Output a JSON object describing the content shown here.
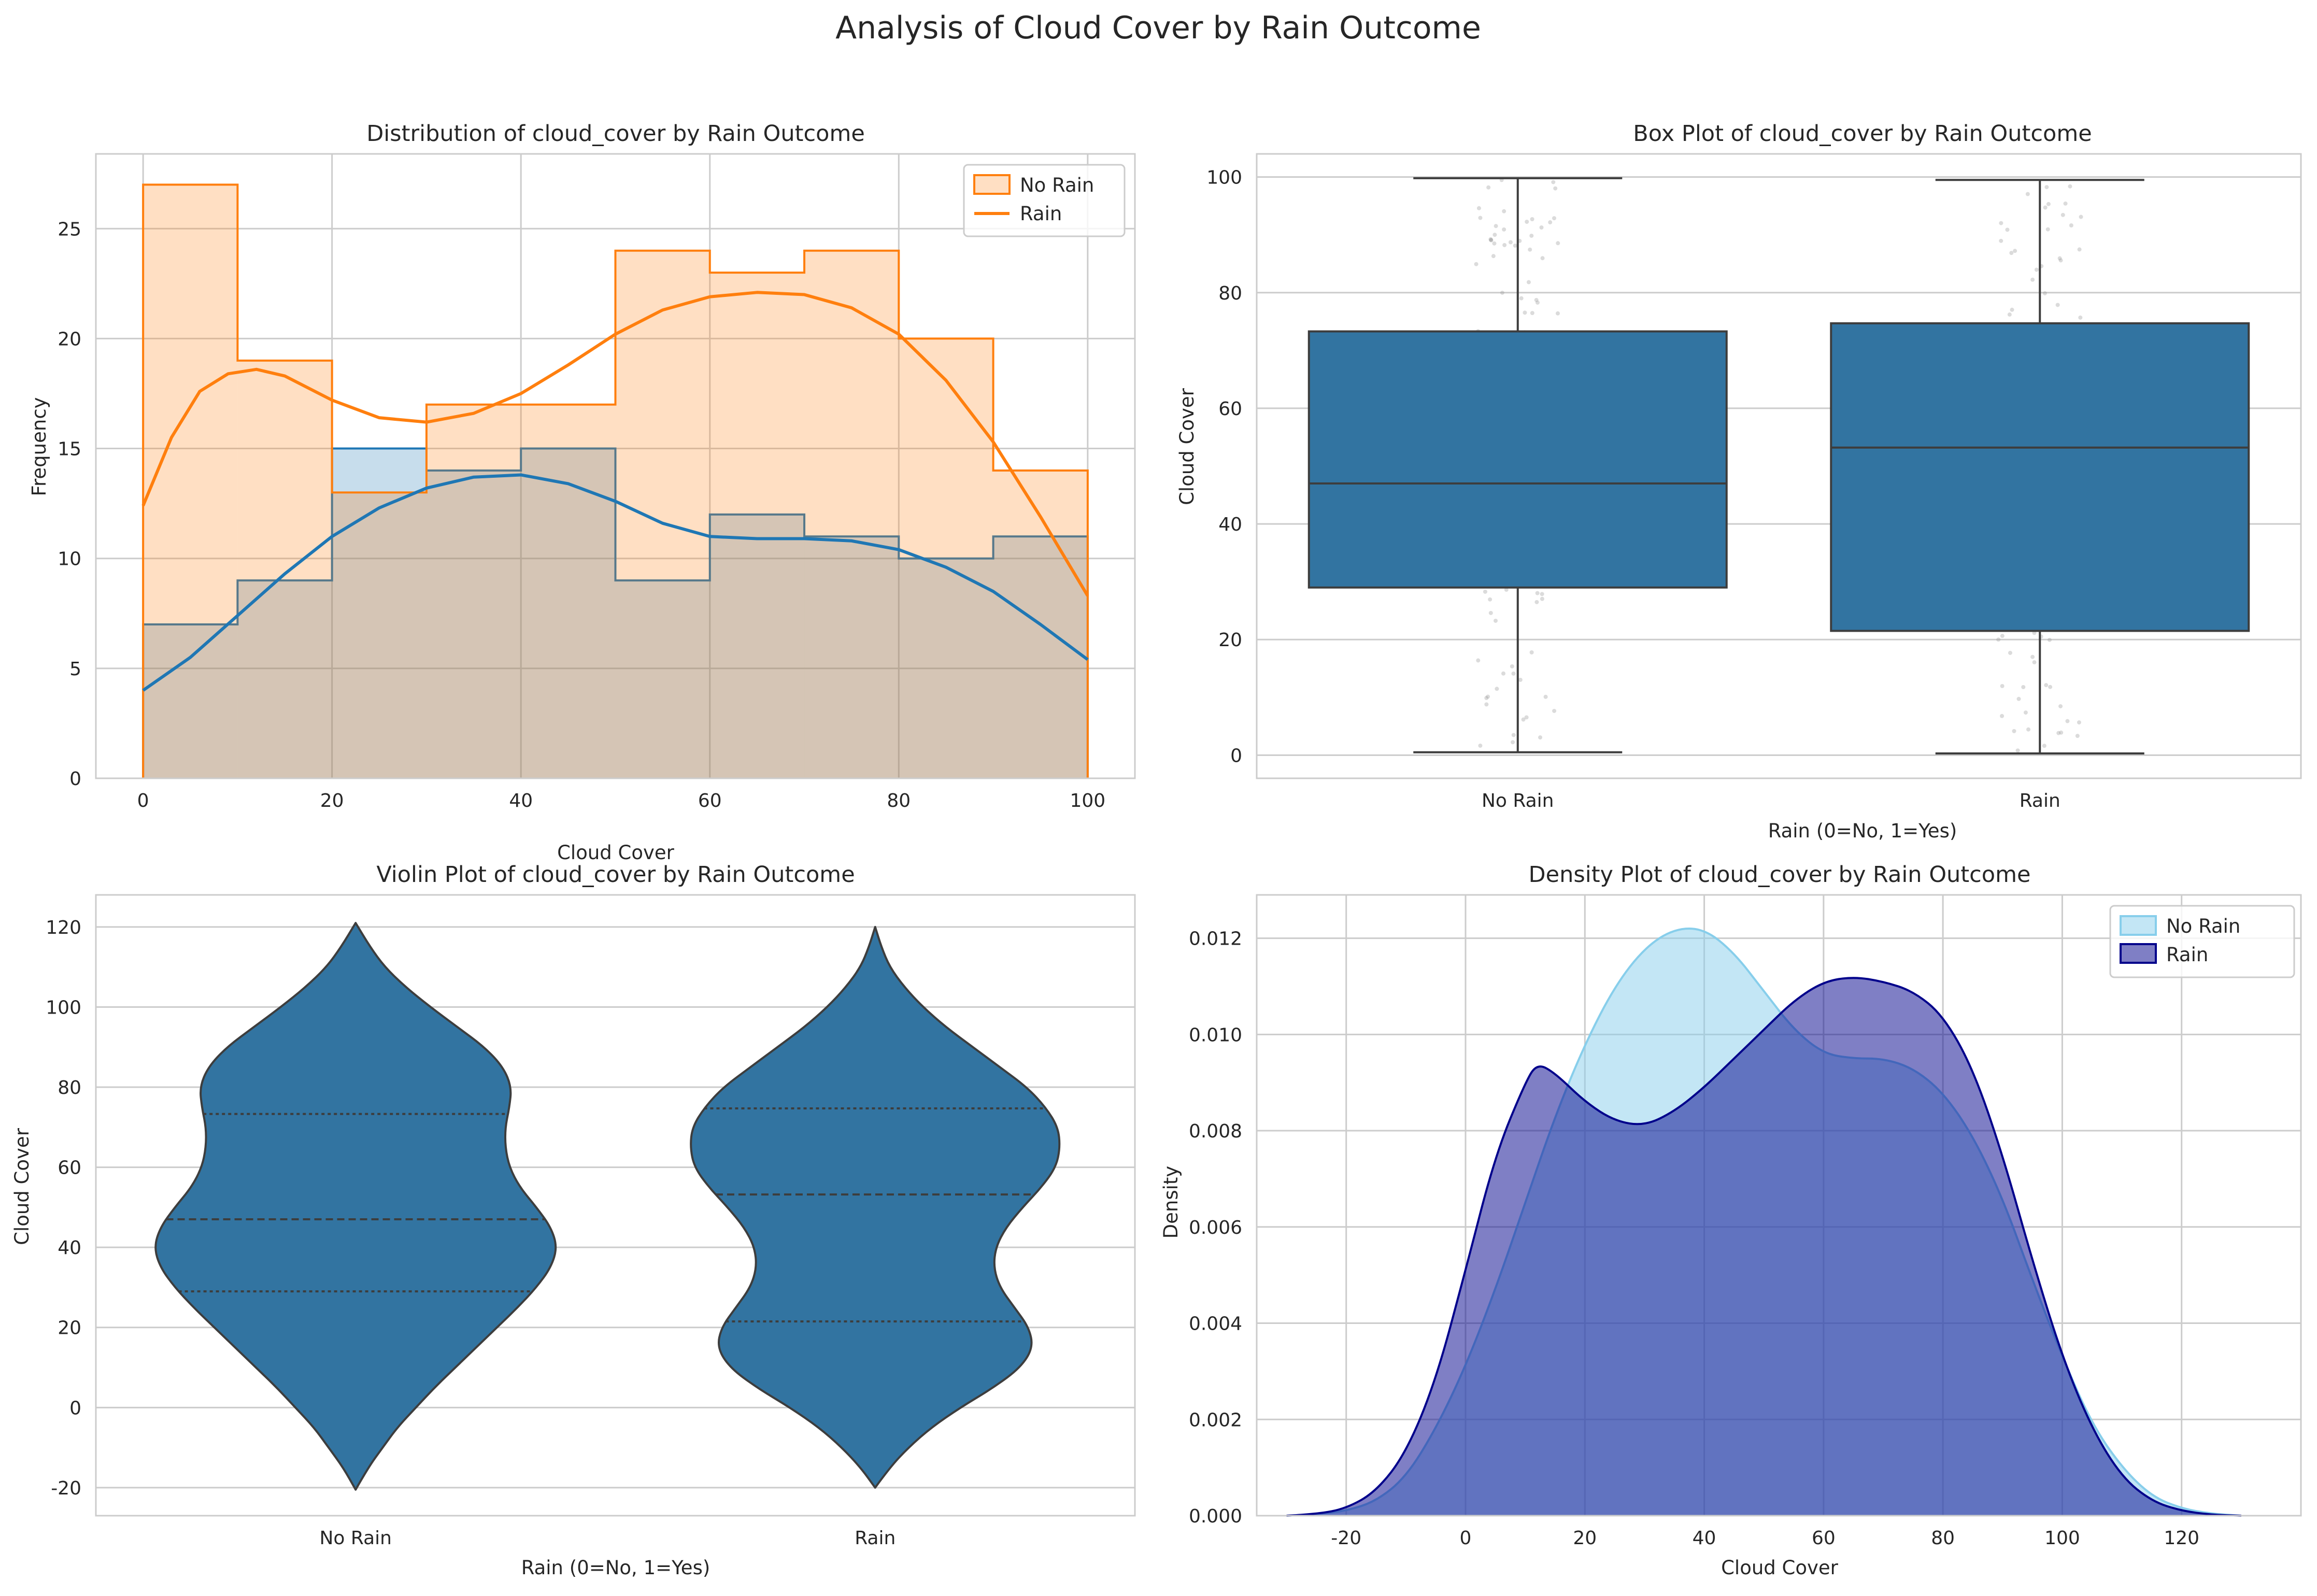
{
  "figure": {
    "title": "Analysis of Cloud Cover by Rain Outcome"
  },
  "colors": {
    "hist_no_rain": "#1f77b4",
    "hist_rain": "#ff7f0e",
    "box_fill": "#3274a1",
    "box_edge": "#3d3d3d",
    "density_no_rain": "#87ceeb",
    "density_rain": "#00008b",
    "grid": "#cccccc"
  },
  "chart_data": [
    {
      "type": "histogram",
      "title": "Distribution of cloud_cover by Rain Outcome",
      "xlabel": "Cloud Cover",
      "ylabel": "Frequency",
      "xlim": [
        -5,
        105
      ],
      "ylim": [
        0,
        28.4
      ],
      "xticks": [
        0,
        20,
        40,
        60,
        80,
        100
      ],
      "yticks": [
        0,
        5,
        10,
        15,
        20,
        25
      ],
      "grid": true,
      "legend": {
        "position": "top-right",
        "entries": [
          "No Rain",
          "Rain"
        ]
      },
      "bin_edges": [
        0,
        10,
        20,
        30,
        40,
        50,
        60,
        70,
        80,
        90,
        100
      ],
      "series": [
        {
          "key": "no_rain",
          "counts": [
            7,
            9,
            15,
            14,
            15,
            9,
            12,
            11,
            10,
            11
          ],
          "kde": [
            [
              0,
              4
            ],
            [
              5,
              5.5
            ],
            [
              10,
              7.4
            ],
            [
              15,
              9.3
            ],
            [
              20,
              11
            ],
            [
              25,
              12.3
            ],
            [
              30,
              13.2
            ],
            [
              35,
              13.7
            ],
            [
              40,
              13.8
            ],
            [
              45,
              13.4
            ],
            [
              50,
              12.6
            ],
            [
              55,
              11.6
            ],
            [
              60,
              11
            ],
            [
              65,
              10.9
            ],
            [
              70,
              10.9
            ],
            [
              75,
              10.8
            ],
            [
              80,
              10.4
            ],
            [
              85,
              9.6
            ],
            [
              90,
              8.5
            ],
            [
              95,
              7
            ],
            [
              100,
              5.4
            ]
          ]
        },
        {
          "key": "rain",
          "counts": [
            27,
            19,
            13,
            17,
            17,
            24,
            23,
            24,
            20,
            14
          ],
          "kde": [
            [
              0,
              12.4
            ],
            [
              3,
              15.5
            ],
            [
              6,
              17.6
            ],
            [
              9,
              18.4
            ],
            [
              12,
              18.6
            ],
            [
              15,
              18.3
            ],
            [
              20,
              17.2
            ],
            [
              25,
              16.4
            ],
            [
              30,
              16.2
            ],
            [
              35,
              16.6
            ],
            [
              40,
              17.5
            ],
            [
              45,
              18.8
            ],
            [
              50,
              20.2
            ],
            [
              55,
              21.3
            ],
            [
              60,
              21.9
            ],
            [
              65,
              22.1
            ],
            [
              70,
              22
            ],
            [
              75,
              21.4
            ],
            [
              80,
              20.2
            ],
            [
              85,
              18.1
            ],
            [
              90,
              15.3
            ],
            [
              95,
              11.9
            ],
            [
              100,
              8.3
            ]
          ]
        }
      ]
    },
    {
      "type": "box",
      "title": "Box Plot of cloud_cover by Rain Outcome",
      "xlabel": "Rain (0=No, 1=Yes)",
      "ylabel": "Cloud Cover",
      "categories": [
        "No Rain",
        "Rain"
      ],
      "ylim": [
        -4,
        104
      ],
      "yticks": [
        0,
        20,
        40,
        60,
        80,
        100
      ],
      "grid": true,
      "boxes": [
        {
          "whislo": 0.5,
          "q1": 29,
          "med": 47,
          "q3": 73.3,
          "whishi": 99.8
        },
        {
          "whislo": 0.3,
          "q1": 21.5,
          "med": 53.2,
          "q3": 74.7,
          "whishi": 99.5
        }
      ]
    },
    {
      "type": "violin",
      "title": "Violin Plot of cloud_cover by Rain Outcome",
      "xlabel": "Rain (0=No, 1=Yes)",
      "ylabel": "Cloud Cover",
      "categories": [
        "No Rain",
        "Rain"
      ],
      "ylim": [
        -27,
        128
      ],
      "yticks": [
        -20,
        0,
        20,
        40,
        60,
        80,
        100,
        120
      ],
      "grid": true,
      "violins": [
        {
          "quartiles": [
            29,
            47,
            73.3
          ],
          "profile": [
            [
              -20.5,
              0
            ],
            [
              -15,
              0.06
            ],
            [
              -10,
              0.13
            ],
            [
              -5,
              0.2
            ],
            [
              0,
              0.29
            ],
            [
              5,
              0.38
            ],
            [
              10,
              0.48
            ],
            [
              15,
              0.58
            ],
            [
              20,
              0.68
            ],
            [
              25,
              0.78
            ],
            [
              30,
              0.87
            ],
            [
              35,
              0.94
            ],
            [
              40,
              0.97
            ],
            [
              45,
              0.94
            ],
            [
              50,
              0.87
            ],
            [
              55,
              0.79
            ],
            [
              60,
              0.74
            ],
            [
              65,
              0.72
            ],
            [
              70,
              0.72
            ],
            [
              75,
              0.74
            ],
            [
              80,
              0.75
            ],
            [
              85,
              0.71
            ],
            [
              90,
              0.62
            ],
            [
              95,
              0.49
            ],
            [
              100,
              0.36
            ],
            [
              105,
              0.24
            ],
            [
              110,
              0.14
            ],
            [
              115,
              0.07
            ],
            [
              121,
              0
            ]
          ]
        },
        {
          "quartiles": [
            21.5,
            53.2,
            74.7
          ],
          "profile": [
            [
              -20,
              0
            ],
            [
              -15,
              0.07
            ],
            [
              -10,
              0.16
            ],
            [
              -5,
              0.27
            ],
            [
              0,
              0.41
            ],
            [
              5,
              0.57
            ],
            [
              10,
              0.7
            ],
            [
              15,
              0.76
            ],
            [
              20,
              0.74
            ],
            [
              25,
              0.67
            ],
            [
              30,
              0.6
            ],
            [
              35,
              0.57
            ],
            [
              40,
              0.58
            ],
            [
              45,
              0.63
            ],
            [
              50,
              0.71
            ],
            [
              55,
              0.8
            ],
            [
              60,
              0.87
            ],
            [
              65,
              0.89
            ],
            [
              70,
              0.88
            ],
            [
              75,
              0.82
            ],
            [
              80,
              0.73
            ],
            [
              85,
              0.6
            ],
            [
              90,
              0.47
            ],
            [
              95,
              0.34
            ],
            [
              100,
              0.23
            ],
            [
              105,
              0.14
            ],
            [
              110,
              0.07
            ],
            [
              115,
              0.03
            ],
            [
              120,
              0
            ]
          ]
        }
      ]
    },
    {
      "type": "area",
      "title": "Density Plot of cloud_cover by Rain Outcome",
      "xlabel": "Cloud Cover",
      "ylabel": "Density",
      "xlim": [
        -35,
        140
      ],
      "ylim": [
        0,
        0.0129
      ],
      "xticks": [
        -20,
        0,
        20,
        40,
        60,
        80,
        100,
        120
      ],
      "yticks": [
        0,
        0.002,
        0.004,
        0.006,
        0.008,
        0.01,
        0.012
      ],
      "ytick_labels": [
        "0.000",
        "0.002",
        "0.004",
        "0.006",
        "0.008",
        "0.010",
        "0.012"
      ],
      "grid": true,
      "legend": {
        "position": "top-right",
        "entries": [
          "No Rain",
          "Rain"
        ]
      },
      "series": [
        {
          "key": "no_rain",
          "points": [
            [
              -30,
              0
            ],
            [
              -25,
              3e-05
            ],
            [
              -20,
              0.0001
            ],
            [
              -15,
              0.0003
            ],
            [
              -10,
              0.0008
            ],
            [
              -5,
              0.0018
            ],
            [
              0,
              0.0031
            ],
            [
              5,
              0.0047
            ],
            [
              10,
              0.0065
            ],
            [
              15,
              0.0083
            ],
            [
              20,
              0.0098
            ],
            [
              25,
              0.011
            ],
            [
              30,
              0.0118
            ],
            [
              35,
              0.0122
            ],
            [
              40,
              0.0122
            ],
            [
              45,
              0.0117
            ],
            [
              50,
              0.0109
            ],
            [
              55,
              0.0101
            ],
            [
              60,
              0.0096
            ],
            [
              65,
              0.0095
            ],
            [
              70,
              0.0095
            ],
            [
              75,
              0.0093
            ],
            [
              80,
              0.0088
            ],
            [
              85,
              0.0079
            ],
            [
              90,
              0.0066
            ],
            [
              95,
              0.0049
            ],
            [
              100,
              0.0033
            ],
            [
              105,
              0.0019
            ],
            [
              110,
              0.001
            ],
            [
              115,
              0.0004
            ],
            [
              120,
              0.00015
            ],
            [
              125,
              4e-05
            ],
            [
              130,
              0
            ]
          ]
        },
        {
          "key": "rain",
          "points": [
            [
              -30,
              0
            ],
            [
              -25,
              3e-05
            ],
            [
              -20,
              0.00015
            ],
            [
              -15,
              0.0005
            ],
            [
              -10,
              0.0013
            ],
            [
              -5,
              0.0028
            ],
            [
              0,
              0.0051
            ],
            [
              5,
              0.0075
            ],
            [
              10,
              0.009
            ],
            [
              12,
              0.0094
            ],
            [
              15,
              0.0092
            ],
            [
              20,
              0.0086
            ],
            [
              25,
              0.0082
            ],
            [
              30,
              0.0081
            ],
            [
              35,
              0.0084
            ],
            [
              40,
              0.0089
            ],
            [
              45,
              0.0095
            ],
            [
              50,
              0.0101
            ],
            [
              55,
              0.0107
            ],
            [
              60,
              0.0111
            ],
            [
              65,
              0.0112
            ],
            [
              70,
              0.0111
            ],
            [
              75,
              0.0109
            ],
            [
              80,
              0.0104
            ],
            [
              85,
              0.0093
            ],
            [
              90,
              0.0075
            ],
            [
              95,
              0.0053
            ],
            [
              100,
              0.0033
            ],
            [
              105,
              0.0018
            ],
            [
              110,
              0.0008
            ],
            [
              115,
              0.0003
            ],
            [
              120,
              0.0001
            ],
            [
              125,
              2e-05
            ],
            [
              130,
              0
            ]
          ]
        }
      ]
    }
  ]
}
